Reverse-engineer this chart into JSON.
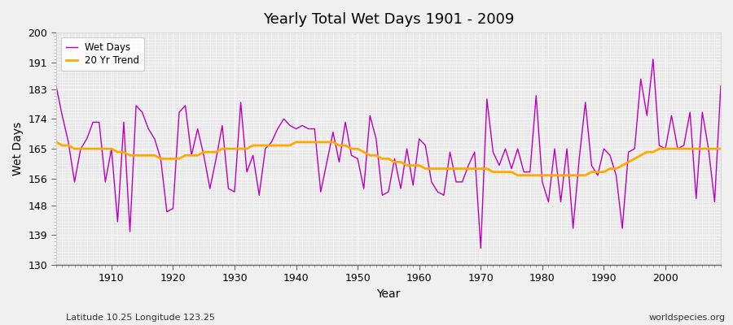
{
  "title": "Yearly Total Wet Days 1901 - 2009",
  "xlabel": "Year",
  "ylabel": "Wet Days",
  "lat_lon_label": "Latitude 10.25 Longitude 123.25",
  "source_label": "worldspecies.org",
  "ylim": [
    130,
    200
  ],
  "yticks": [
    130,
    139,
    148,
    156,
    165,
    174,
    183,
    191,
    200
  ],
  "xticks": [
    1910,
    1920,
    1930,
    1940,
    1950,
    1960,
    1970,
    1980,
    1990,
    2000
  ],
  "xlim": [
    1901,
    2009
  ],
  "fig_bg_color": "#f0f0f0",
  "plot_bg_color": "#e8e8e8",
  "wet_days_color": "#bb00bb",
  "trend_color": "#ffaa00",
  "years": [
    1901,
    1902,
    1903,
    1904,
    1905,
    1906,
    1907,
    1908,
    1909,
    1910,
    1911,
    1912,
    1913,
    1914,
    1915,
    1916,
    1917,
    1918,
    1919,
    1920,
    1921,
    1922,
    1923,
    1924,
    1925,
    1926,
    1927,
    1928,
    1929,
    1930,
    1931,
    1932,
    1933,
    1934,
    1935,
    1936,
    1937,
    1938,
    1939,
    1940,
    1941,
    1942,
    1943,
    1944,
    1945,
    1946,
    1947,
    1948,
    1949,
    1950,
    1951,
    1952,
    1953,
    1954,
    1955,
    1956,
    1957,
    1958,
    1959,
    1960,
    1961,
    1962,
    1963,
    1964,
    1965,
    1966,
    1967,
    1968,
    1969,
    1970,
    1971,
    1972,
    1973,
    1974,
    1975,
    1976,
    1977,
    1978,
    1979,
    1980,
    1981,
    1982,
    1983,
    1984,
    1985,
    1986,
    1987,
    1988,
    1989,
    1990,
    1991,
    1992,
    1993,
    1994,
    1995,
    1996,
    1997,
    1998,
    1999,
    2000,
    2001,
    2002,
    2003,
    2004,
    2005,
    2006,
    2007,
    2008,
    2009
  ],
  "wet_days": [
    184,
    175,
    167,
    155,
    165,
    168,
    173,
    173,
    155,
    165,
    143,
    173,
    140,
    178,
    176,
    171,
    168,
    162,
    146,
    147,
    176,
    178,
    163,
    171,
    163,
    153,
    162,
    172,
    153,
    152,
    179,
    158,
    163,
    151,
    165,
    167,
    171,
    174,
    172,
    171,
    172,
    171,
    171,
    152,
    161,
    170,
    161,
    173,
    163,
    162,
    153,
    175,
    168,
    151,
    152,
    162,
    153,
    165,
    154,
    168,
    166,
    155,
    152,
    151,
    164,
    155,
    155,
    160,
    164,
    135,
    180,
    164,
    160,
    165,
    159,
    165,
    158,
    158,
    181,
    155,
    149,
    165,
    149,
    165,
    141,
    162,
    179,
    160,
    157,
    165,
    163,
    157,
    141,
    164,
    165,
    186,
    175,
    192,
    166,
    165,
    175,
    165,
    166,
    176,
    150,
    176,
    165,
    149,
    184
  ],
  "trend_values": [
    167,
    166,
    166,
    165,
    165,
    165,
    165,
    165,
    165,
    165,
    164,
    164,
    163,
    163,
    163,
    163,
    163,
    162,
    162,
    162,
    162,
    163,
    163,
    163,
    164,
    164,
    164,
    165,
    165,
    165,
    165,
    165,
    166,
    166,
    166,
    166,
    166,
    166,
    166,
    167,
    167,
    167,
    167,
    167,
    167,
    167,
    166,
    166,
    165,
    165,
    164,
    163,
    163,
    162,
    162,
    161,
    161,
    160,
    160,
    160,
    159,
    159,
    159,
    159,
    159,
    159,
    159,
    159,
    159,
    159,
    159,
    158,
    158,
    158,
    158,
    157,
    157,
    157,
    157,
    157,
    157,
    157,
    157,
    157,
    157,
    157,
    157,
    158,
    158,
    158,
    159,
    159,
    160,
    161,
    162,
    163,
    164,
    164,
    165,
    165,
    165,
    165,
    165,
    165,
    165,
    165,
    165,
    165,
    165
  ]
}
